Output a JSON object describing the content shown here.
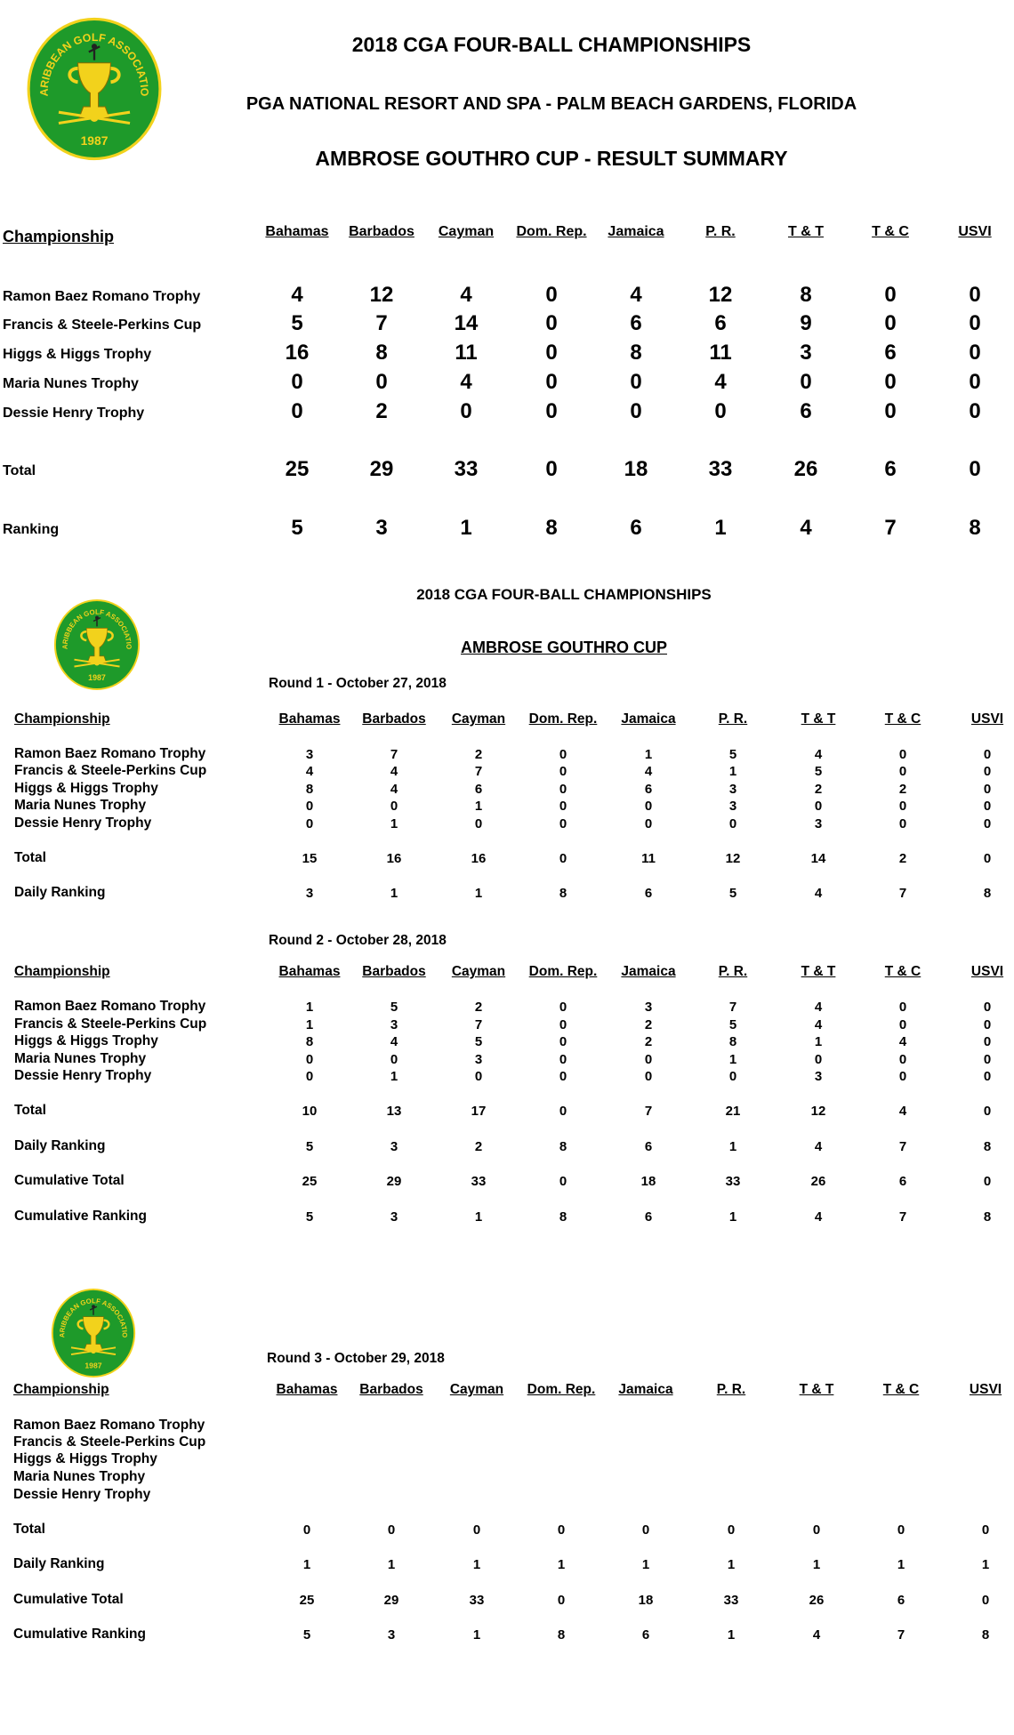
{
  "logo": {
    "text": "CARIBBEAN GOLF ASSOCIATION",
    "year": "1987",
    "green": "#1e9a2a",
    "gold": "#f2d21c"
  },
  "header": {
    "title": "2018 CGA FOUR-BALL CHAMPIONSHIPS",
    "venue": "PGA NATIONAL RESORT AND SPA - PALM BEACH GARDENS, FLORIDA",
    "subtitle": "AMBROSE GOUTHRO CUP - RESULT SUMMARY"
  },
  "columns": [
    "Bahamas",
    "Barbados",
    "Cayman",
    "Dom. Rep.",
    "Jamaica",
    "P. R.",
    "T & T",
    "T & C",
    "USVI"
  ],
  "summary": {
    "header": "Championship",
    "rows": [
      {
        "label": "Ramon Baez Romano Trophy",
        "values": [
          "4",
          "12",
          "4",
          "0",
          "4",
          "12",
          "8",
          "0",
          "0"
        ]
      },
      {
        "label": "Francis & Steele-Perkins Cup",
        "values": [
          "5",
          "7",
          "14",
          "0",
          "6",
          "6",
          "9",
          "0",
          "0"
        ]
      },
      {
        "label": "Higgs & Higgs Trophy",
        "values": [
          "16",
          "8",
          "11",
          "0",
          "8",
          "11",
          "3",
          "6",
          "0"
        ]
      },
      {
        "label": "Maria Nunes Trophy",
        "values": [
          "0",
          "0",
          "4",
          "0",
          "0",
          "4",
          "0",
          "0",
          "0"
        ]
      },
      {
        "label": "Dessie Henry Trophy",
        "values": [
          "0",
          "2",
          "0",
          "0",
          "0",
          "0",
          "6",
          "0",
          "0"
        ]
      },
      {
        "label": "Total",
        "values": [
          "25",
          "29",
          "33",
          "0",
          "18",
          "33",
          "26",
          "6",
          "0"
        ]
      },
      {
        "label": "Ranking",
        "values": [
          "5",
          "3",
          "1",
          "8",
          "6",
          "1",
          "4",
          "7",
          "8"
        ]
      }
    ]
  },
  "detail": {
    "title": "2018 CGA FOUR-BALL CHAMPIONSHIPS",
    "cup": "AMBROSE GOUTHRO CUP"
  },
  "rounds": [
    {
      "title": "Round 1 - October 27, 2018",
      "header": "Championship",
      "rows": [
        {
          "label": "Ramon Baez Romano Trophy",
          "values": [
            "3",
            "7",
            "2",
            "0",
            "1",
            "5",
            "4",
            "0",
            "0"
          ]
        },
        {
          "label": "Francis & Steele-Perkins Cup",
          "values": [
            "4",
            "4",
            "7",
            "0",
            "4",
            "1",
            "5",
            "0",
            "0"
          ]
        },
        {
          "label": "Higgs & Higgs Trophy",
          "values": [
            "8",
            "4",
            "6",
            "0",
            "6",
            "3",
            "2",
            "2",
            "0"
          ]
        },
        {
          "label": "Maria Nunes Trophy",
          "values": [
            "0",
            "0",
            "1",
            "0",
            "0",
            "3",
            "0",
            "0",
            "0"
          ]
        },
        {
          "label": "Dessie Henry Trophy",
          "values": [
            "0",
            "1",
            "0",
            "0",
            "0",
            "0",
            "3",
            "0",
            "0"
          ]
        },
        {
          "label": "Total",
          "values": [
            "15",
            "16",
            "16",
            "0",
            "11",
            "12",
            "14",
            "2",
            "0"
          ]
        },
        {
          "label": "Daily Ranking",
          "values": [
            "3",
            "1",
            "1",
            "8",
            "6",
            "5",
            "4",
            "7",
            "8"
          ]
        }
      ]
    },
    {
      "title": "Round 2 - October 28, 2018",
      "header": "Championship",
      "rows": [
        {
          "label": "Ramon Baez Romano Trophy",
          "values": [
            "1",
            "5",
            "2",
            "0",
            "3",
            "7",
            "4",
            "0",
            "0"
          ]
        },
        {
          "label": "Francis & Steele-Perkins Cup",
          "values": [
            "1",
            "3",
            "7",
            "0",
            "2",
            "5",
            "4",
            "0",
            "0"
          ]
        },
        {
          "label": "Higgs & Higgs Trophy",
          "values": [
            "8",
            "4",
            "5",
            "0",
            "2",
            "8",
            "1",
            "4",
            "0"
          ]
        },
        {
          "label": "Maria Nunes Trophy",
          "values": [
            "0",
            "0",
            "3",
            "0",
            "0",
            "1",
            "0",
            "0",
            "0"
          ]
        },
        {
          "label": "Dessie Henry Trophy",
          "values": [
            "0",
            "1",
            "0",
            "0",
            "0",
            "0",
            "3",
            "0",
            "0"
          ]
        },
        {
          "label": "Total",
          "values": [
            "10",
            "13",
            "17",
            "0",
            "7",
            "21",
            "12",
            "4",
            "0"
          ]
        },
        {
          "label": "Daily  Ranking",
          "values": [
            "5",
            "3",
            "2",
            "8",
            "6",
            "1",
            "4",
            "7",
            "8"
          ]
        },
        {
          "label": "Cumulative Total",
          "values": [
            "25",
            "29",
            "33",
            "0",
            "18",
            "33",
            "26",
            "6",
            "0"
          ]
        },
        {
          "label": "Cumulative Ranking",
          "values": [
            "5",
            "3",
            "1",
            "8",
            "6",
            "1",
            "4",
            "7",
            "8"
          ]
        }
      ]
    },
    {
      "title": "Round 3 - October 29, 2018",
      "header": "Championship",
      "rows": [
        {
          "label": "Ramon Baez Romano Trophy",
          "values": []
        },
        {
          "label": "Francis & Steele-Perkins Cup",
          "values": []
        },
        {
          "label": "Higgs & Higgs Trophy",
          "values": []
        },
        {
          "label": "Maria Nunes Trophy",
          "values": []
        },
        {
          "label": "Dessie Henry Trophy",
          "values": []
        },
        {
          "label": "Total",
          "values": [
            "0",
            "0",
            "0",
            "0",
            "0",
            "0",
            "0",
            "0",
            "0"
          ]
        },
        {
          "label": "Daily  Ranking",
          "values": [
            "1",
            "1",
            "1",
            "1",
            "1",
            "1",
            "1",
            "1",
            "1"
          ]
        },
        {
          "label": "Cumulative Total",
          "values": [
            "25",
            "29",
            "33",
            "0",
            "18",
            "33",
            "26",
            "6",
            "0"
          ]
        },
        {
          "label": "Cumulative Ranking",
          "values": [
            "5",
            "3",
            "1",
            "8",
            "6",
            "1",
            "4",
            "7",
            "8"
          ]
        }
      ]
    }
  ]
}
